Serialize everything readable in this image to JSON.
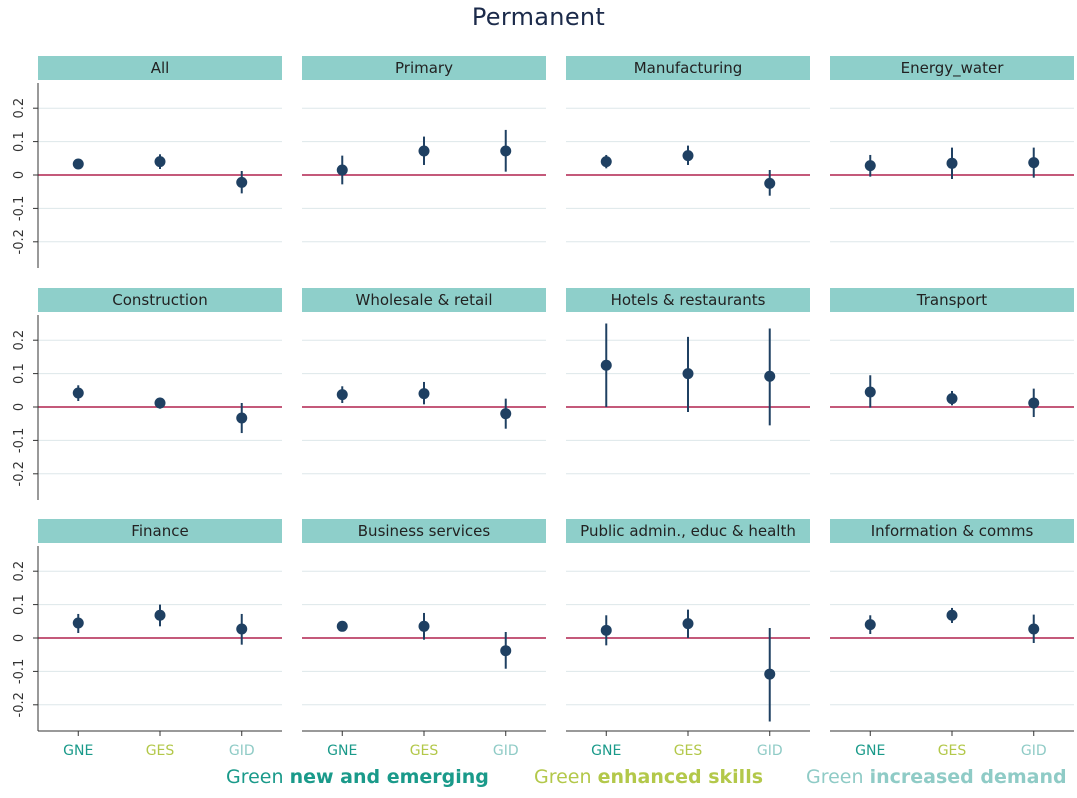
{
  "title": "Permanent",
  "colors": {
    "header_fill": "#8ecfca",
    "point": "#1f4062",
    "zero_line": "#b0224f",
    "grid": "#dde7ea",
    "gne": "#1a9a8a",
    "ges": "#b3c84a",
    "gid": "#8fcbc6"
  },
  "legend": [
    {
      "prefix": "Green ",
      "emphasis": "new and emerging",
      "color": "#1a9a8a"
    },
    {
      "prefix": "Green ",
      "emphasis": "enhanced skills",
      "color": "#b3c84a"
    },
    {
      "prefix": "Green ",
      "emphasis": "increased demand",
      "color": "#8fcbc6"
    }
  ],
  "chart_data": {
    "type": "scatter",
    "subtype": "dot-and-whisker",
    "title": "Permanent",
    "categories": [
      "GNE",
      "GES",
      "GID"
    ],
    "category_colors": [
      "#1a9a8a",
      "#b3c84a",
      "#8fcbc6"
    ],
    "ylim": [
      -0.28,
      0.28
    ],
    "yticks": [
      -0.2,
      -0.1,
      0,
      0.1,
      0.2
    ],
    "ytick_labels": [
      "-0.2",
      "-0.1",
      "0",
      "0.1",
      "0.2"
    ],
    "reference_line": 0,
    "grid": true,
    "panels": [
      {
        "label": "All",
        "estimates": [
          0.033,
          0.04,
          -0.022
        ],
        "ci_low": [
          0.025,
          0.018,
          -0.055
        ],
        "ci_high": [
          0.04,
          0.062,
          0.012
        ]
      },
      {
        "label": "Primary",
        "estimates": [
          0.015,
          0.072,
          0.072
        ],
        "ci_low": [
          -0.028,
          0.03,
          0.01
        ],
        "ci_high": [
          0.058,
          0.115,
          0.135
        ]
      },
      {
        "label": "Manufacturing",
        "estimates": [
          0.04,
          0.058,
          -0.025
        ],
        "ci_low": [
          0.02,
          0.03,
          -0.062
        ],
        "ci_high": [
          0.06,
          0.088,
          0.015
        ]
      },
      {
        "label": "Energy_water",
        "estimates": [
          0.028,
          0.035,
          0.037
        ],
        "ci_low": [
          -0.005,
          -0.012,
          -0.008
        ],
        "ci_high": [
          0.06,
          0.082,
          0.082
        ]
      },
      {
        "label": "Construction",
        "estimates": [
          0.042,
          0.012,
          -0.033
        ],
        "ci_low": [
          0.018,
          -0.005,
          -0.078
        ],
        "ci_high": [
          0.065,
          0.028,
          0.012
        ]
      },
      {
        "label": "Wholesale & retail",
        "estimates": [
          0.037,
          0.04,
          -0.02
        ],
        "ci_low": [
          0.012,
          0.008,
          -0.065
        ],
        "ci_high": [
          0.062,
          0.075,
          0.025
        ]
      },
      {
        "label": "Hotels & restaurants",
        "estimates": [
          0.125,
          0.1,
          0.092
        ],
        "ci_low": [
          0.0,
          -0.015,
          -0.055
        ],
        "ci_high": [
          0.25,
          0.21,
          0.235
        ]
      },
      {
        "label": "Transport",
        "estimates": [
          0.045,
          0.025,
          0.012
        ],
        "ci_low": [
          -0.002,
          0.005,
          -0.03
        ],
        "ci_high": [
          0.095,
          0.048,
          0.055
        ]
      },
      {
        "label": "Finance",
        "estimates": [
          0.045,
          0.068,
          0.027
        ],
        "ci_low": [
          0.015,
          0.035,
          -0.02
        ],
        "ci_high": [
          0.072,
          0.1,
          0.072
        ]
      },
      {
        "label": "Business services",
        "estimates": [
          0.035,
          0.035,
          -0.038
        ],
        "ci_low": [
          0.022,
          -0.005,
          -0.092
        ],
        "ci_high": [
          0.048,
          0.075,
          0.018
        ]
      },
      {
        "label": "Public admin., educ & health",
        "estimates": [
          0.023,
          0.043,
          -0.108
        ],
        "ci_low": [
          -0.022,
          0.0,
          -0.25
        ],
        "ci_high": [
          0.068,
          0.085,
          0.03
        ]
      },
      {
        "label": "Information & comms",
        "estimates": [
          0.04,
          0.068,
          0.027
        ],
        "ci_low": [
          0.012,
          0.045,
          -0.015
        ],
        "ci_high": [
          0.068,
          0.09,
          0.07
        ]
      }
    ]
  }
}
